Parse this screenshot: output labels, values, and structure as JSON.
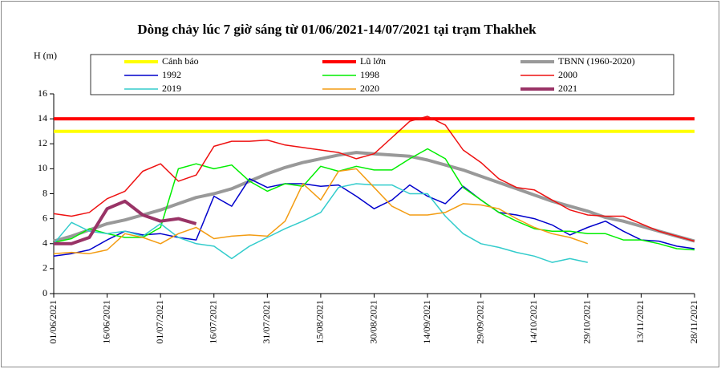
{
  "chart_data": {
    "type": "line",
    "title": "Dòng chảy lúc 7 giờ sáng từ 01/06/2021-14/07/2021 tại trạm Thakhek",
    "y_label": "H (m)",
    "x": [
      0,
      5,
      10,
      15,
      20,
      25,
      30,
      35,
      40,
      45,
      50,
      55,
      60,
      65,
      70,
      75,
      80,
      85,
      90,
      95,
      100,
      105,
      110,
      115,
      120,
      125,
      130,
      135,
      140,
      145,
      150,
      155,
      160,
      165,
      170,
      175,
      180
    ],
    "xlim": [
      0,
      180
    ],
    "xticks": [
      {
        "value": 0,
        "label": "01/06/2021"
      },
      {
        "value": 15,
        "label": "16/06/2021"
      },
      {
        "value": 30,
        "label": "01/07/2021"
      },
      {
        "value": 45,
        "label": "16/07/2021"
      },
      {
        "value": 60,
        "label": "31/07/2021"
      },
      {
        "value": 75,
        "label": "15/08/2021"
      },
      {
        "value": 90,
        "label": "30/08/2021"
      },
      {
        "value": 105,
        "label": "14/09/2021"
      },
      {
        "value": 120,
        "label": "29/09/2021"
      },
      {
        "value": 135,
        "label": "14/10/2021"
      },
      {
        "value": 150,
        "label": "29/10/2021"
      },
      {
        "value": 165,
        "label": "13/11/2021"
      },
      {
        "value": 180,
        "label": "28/11/2021"
      }
    ],
    "ylim": [
      0,
      16
    ],
    "yticks": [
      0,
      2,
      4,
      6,
      8,
      10,
      12,
      14,
      16
    ],
    "series": [
      {
        "name": "Cảnh báo",
        "color": "#ffff00",
        "width": 4,
        "values": [
          13,
          13,
          13,
          13,
          13,
          13,
          13,
          13,
          13,
          13,
          13,
          13,
          13,
          13,
          13,
          13,
          13,
          13,
          13,
          13,
          13,
          13,
          13,
          13,
          13,
          13,
          13,
          13,
          13,
          13,
          13,
          13,
          13,
          13,
          13,
          13,
          13
        ]
      },
      {
        "name": "Lũ lớn",
        "color": "#ff0000",
        "width": 4,
        "values": [
          14,
          14,
          14,
          14,
          14,
          14,
          14,
          14,
          14,
          14,
          14,
          14,
          14,
          14,
          14,
          14,
          14,
          14,
          14,
          14,
          14,
          14,
          14,
          14,
          14,
          14,
          14,
          14,
          14,
          14,
          14,
          14,
          14,
          14,
          14,
          14,
          14
        ]
      },
      {
        "name": "TBNN (1960-2020)",
        "color": "#999999",
        "width": 4,
        "values": [
          4.2,
          4.6,
          5.1,
          5.6,
          5.9,
          6.3,
          6.7,
          7.2,
          7.7,
          8.0,
          8.4,
          9.0,
          9.6,
          10.1,
          10.5,
          10.8,
          11.1,
          11.3,
          11.2,
          11.1,
          11.0,
          10.7,
          10.3,
          9.9,
          9.4,
          8.9,
          8.4,
          7.9,
          7.4,
          7.0,
          6.6,
          6.1,
          5.8,
          5.4,
          5.0,
          4.6,
          4.2
        ]
      },
      {
        "name": "1992",
        "color": "#0000cc",
        "width": 1.5,
        "values": [
          3.0,
          3.2,
          3.5,
          4.3,
          5.0,
          4.7,
          4.8,
          4.5,
          4.3,
          7.8,
          7.0,
          9.2,
          8.5,
          8.8,
          8.8,
          8.6,
          8.7,
          7.8,
          6.8,
          7.5,
          8.7,
          7.8,
          7.2,
          8.6,
          7.5,
          6.5,
          6.3,
          6.0,
          5.5,
          4.7,
          5.3,
          5.8,
          5.0,
          4.3,
          4.2,
          3.8,
          3.6
        ]
      },
      {
        "name": "1998",
        "color": "#00ee00",
        "width": 1.5,
        "values": [
          4.1,
          4.4,
          5.2,
          4.8,
          4.5,
          4.5,
          5.3,
          10.0,
          10.4,
          10.0,
          10.3,
          9.0,
          8.2,
          8.8,
          8.6,
          10.2,
          9.8,
          10.2,
          9.9,
          9.9,
          10.8,
          11.6,
          10.8,
          8.5,
          7.5,
          6.5,
          5.8,
          5.2,
          5.0,
          5.0,
          4.8,
          4.8,
          4.3,
          4.3,
          4.0,
          3.6,
          3.5
        ]
      },
      {
        "name": "2000",
        "color": "#ee1111",
        "width": 1.5,
        "values": [
          6.4,
          6.2,
          6.5,
          7.6,
          8.2,
          9.8,
          10.4,
          9.0,
          9.5,
          11.8,
          12.2,
          12.2,
          12.3,
          11.9,
          11.7,
          11.5,
          11.3,
          10.8,
          11.2,
          12.5,
          13.8,
          14.2,
          13.5,
          11.5,
          10.5,
          9.2,
          8.5,
          8.3,
          7.5,
          6.7,
          6.3,
          6.2,
          6.2,
          5.6,
          5.0,
          4.6,
          4.2
        ]
      },
      {
        "name": "2019",
        "color": "#33cccc",
        "width": 1.5,
        "values": [
          4.0,
          5.7,
          5.0,
          4.8,
          5.0,
          4.6,
          5.6,
          4.5,
          4.0,
          3.8,
          2.8,
          3.8,
          4.5,
          5.2,
          5.8,
          6.5,
          8.5,
          8.8,
          8.7,
          8.7,
          8.0,
          8.0,
          6.2,
          4.8,
          4.0,
          3.7,
          3.3,
          3.0,
          2.5,
          2.8,
          2.5,
          null,
          null,
          null,
          null,
          null,
          null
        ]
      },
      {
        "name": "2020",
        "color": "#f39c12",
        "width": 1.5,
        "values": [
          3.2,
          3.3,
          3.2,
          3.5,
          4.8,
          4.5,
          4.0,
          4.8,
          5.3,
          4.4,
          4.6,
          4.7,
          4.6,
          5.8,
          8.8,
          7.5,
          9.8,
          10.0,
          8.5,
          7.0,
          6.3,
          6.3,
          6.5,
          7.2,
          7.1,
          6.8,
          6.0,
          5.3,
          4.8,
          4.5,
          4.0,
          null,
          null,
          null,
          null,
          null,
          null
        ]
      },
      {
        "name": "2021",
        "color": "#993366",
        "width": 4,
        "values": [
          4.0,
          4.0,
          4.5,
          6.8,
          7.4,
          6.3,
          5.8,
          6.0,
          5.6,
          null,
          null,
          null,
          null,
          null,
          null,
          null,
          null,
          null,
          null,
          null,
          null,
          null,
          null,
          null,
          null,
          null,
          null,
          null,
          null,
          null,
          null,
          null,
          null,
          null,
          null,
          null,
          null
        ]
      }
    ]
  }
}
